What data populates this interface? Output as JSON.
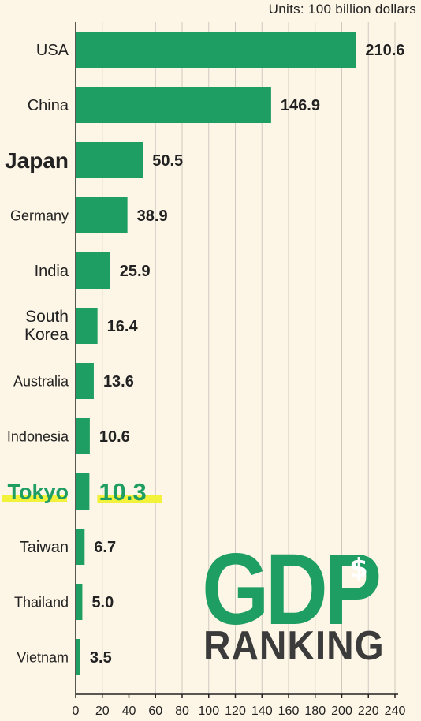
{
  "units_label": "Units: 100 billion dollars",
  "badge": {
    "title": "GDP",
    "symbol": "$",
    "subtitle": "RANKING"
  },
  "colors": {
    "bar": "#1e9e63",
    "highlight_text": "#1e9e63",
    "highlight_marker": "#f2f23a",
    "background": "#fdf6e6",
    "grid": "#cfcac0",
    "axis": "#222222",
    "label": "#222222"
  },
  "chart_data": {
    "type": "bar",
    "orientation": "horizontal",
    "categories": [
      "USA",
      "China",
      "Japan",
      "Germany",
      "India",
      "South Korea",
      "Australia",
      "Indonesia",
      "Tokyo",
      "Taiwan",
      "Thailand",
      "Vietnam"
    ],
    "values": [
      210.6,
      146.9,
      50.5,
      38.9,
      25.9,
      16.4,
      13.6,
      10.6,
      10.3,
      6.7,
      5.0,
      3.5
    ],
    "value_labels": [
      "210.6",
      "146.9",
      "50.5",
      "38.9",
      "25.9",
      "16.4",
      "13.6",
      "10.6",
      "10.3",
      "6.7",
      "5.0",
      "3.5"
    ],
    "emphasized": [
      "Japan"
    ],
    "highlighted": [
      "Tokyo"
    ],
    "xlim": [
      0,
      240
    ],
    "x_ticks": [
      0,
      20,
      40,
      60,
      80,
      100,
      120,
      140,
      160,
      180,
      200,
      220,
      240
    ],
    "grid": true,
    "legend": "none"
  }
}
